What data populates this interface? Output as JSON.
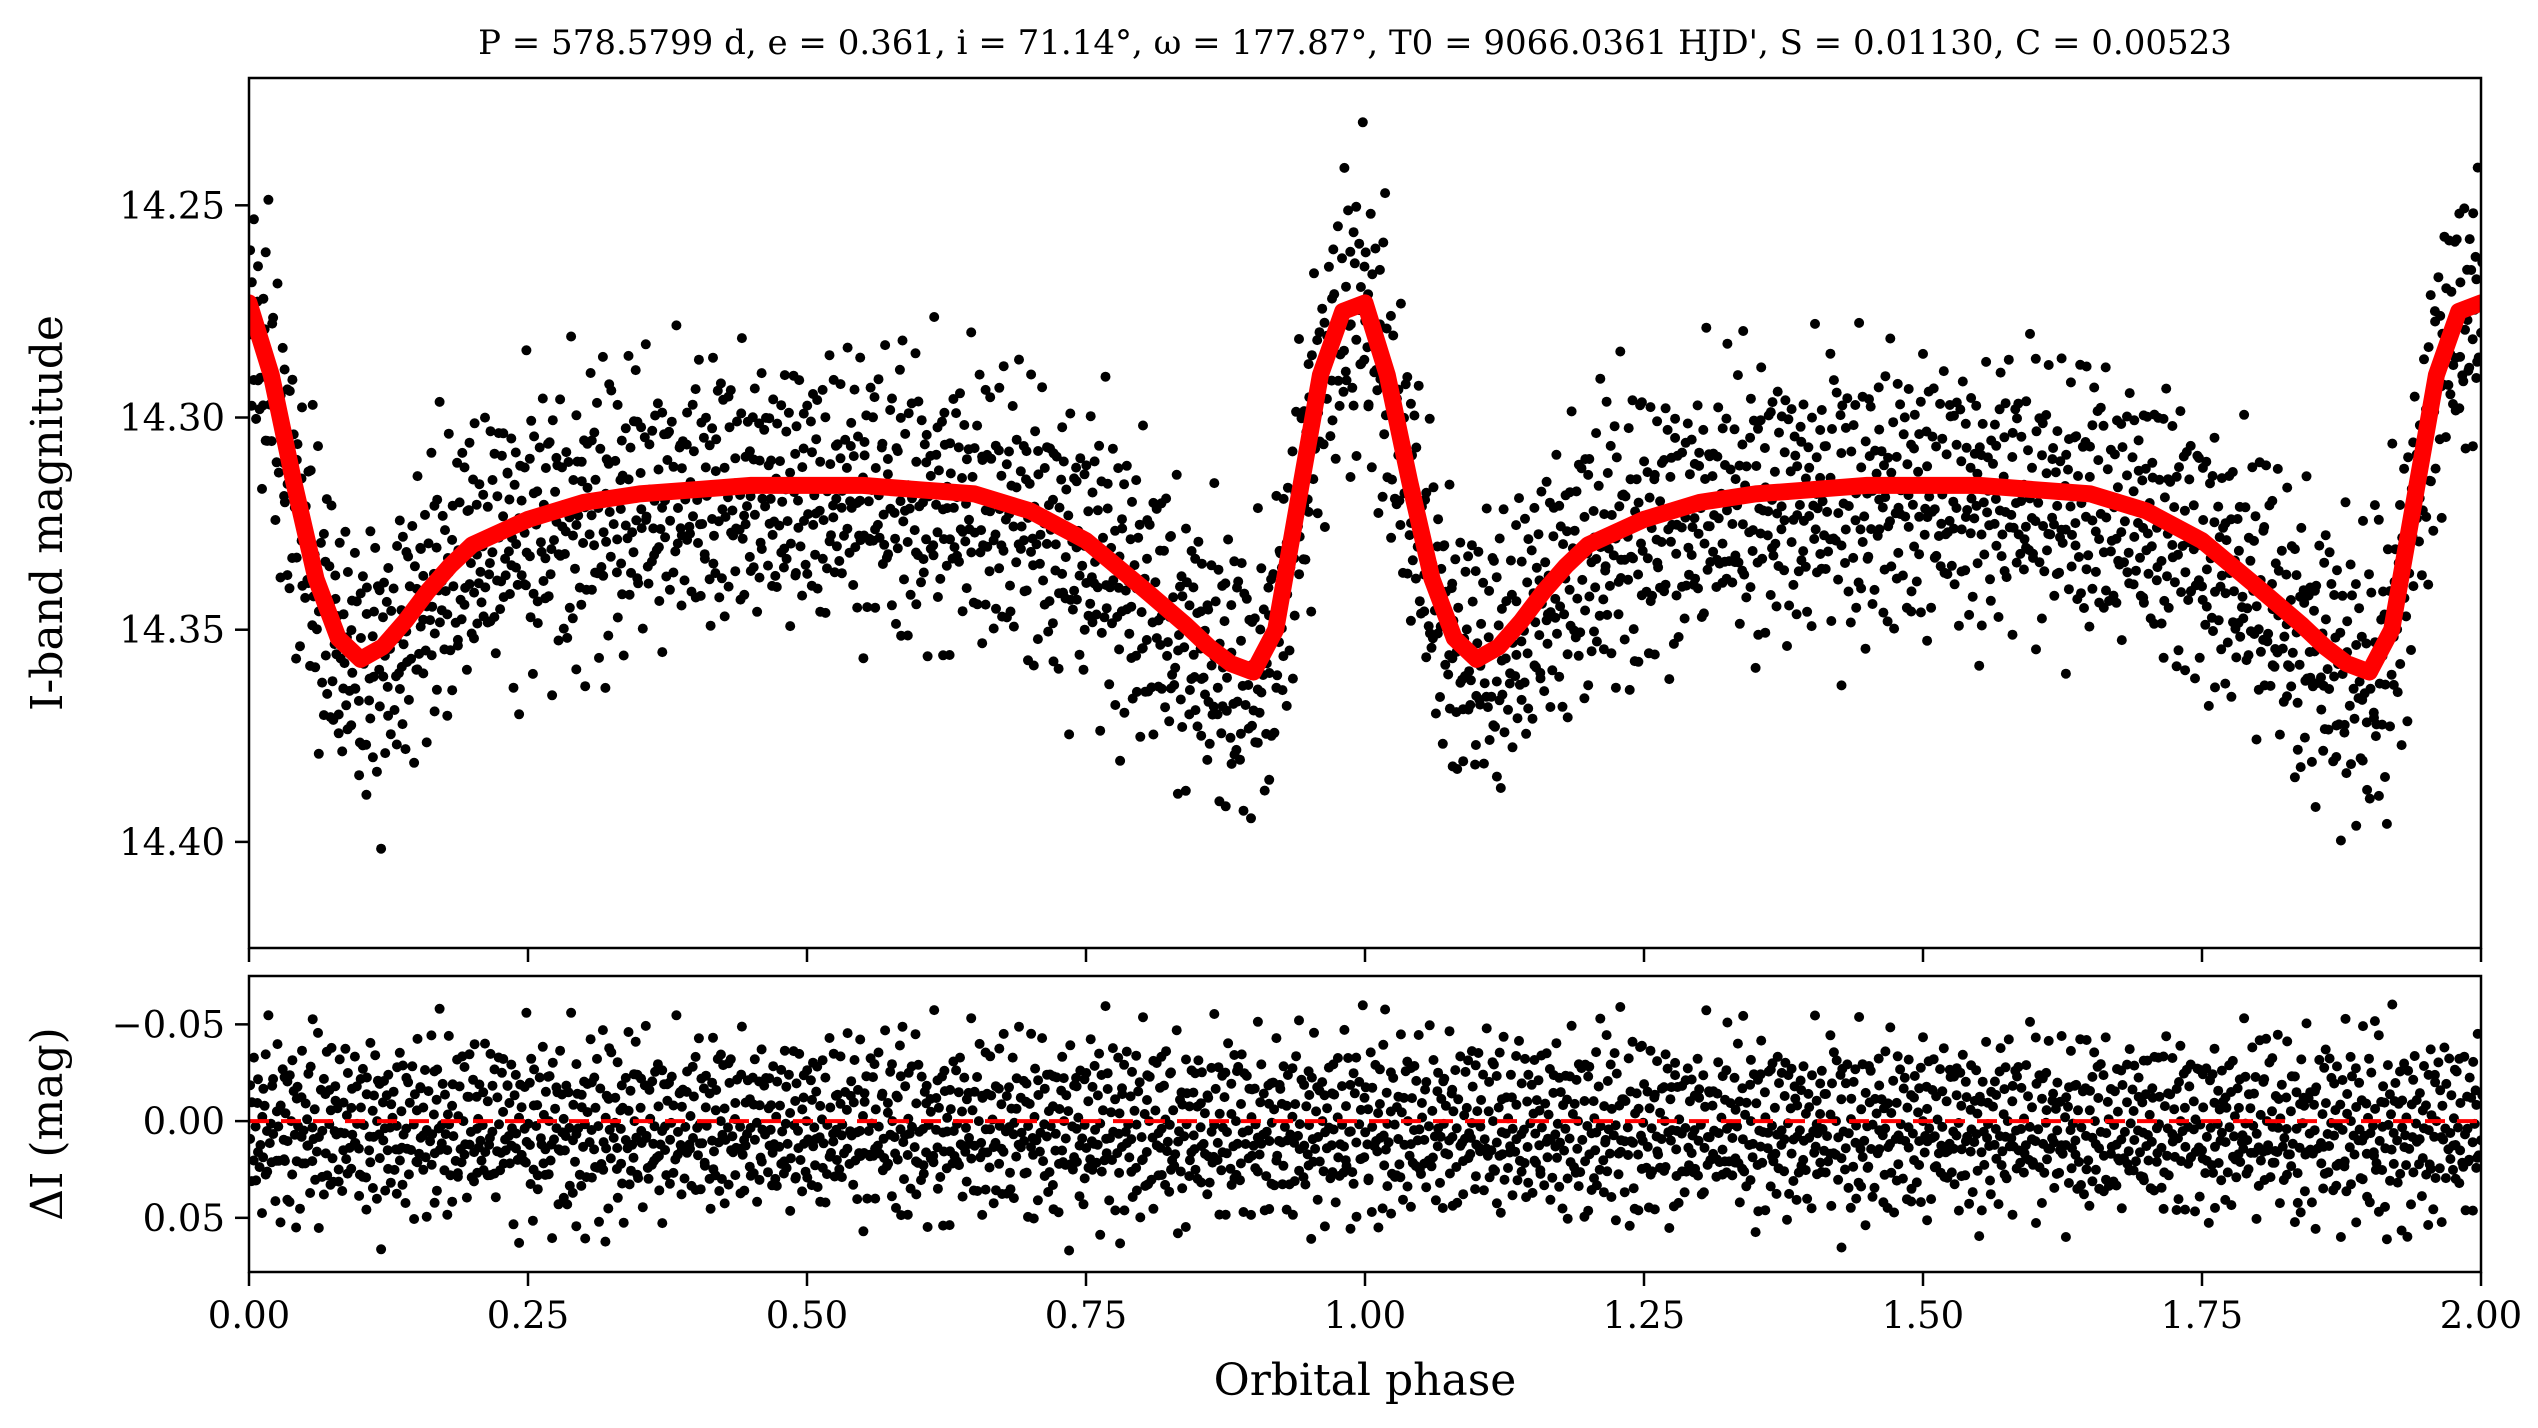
{
  "figure": {
    "title": "P = 578.5799 d, e = 0.361, i = 71.14°, ω = 177.87°, T0 = 9066.0361 HJD', S = 0.01130, C = 0.00523",
    "colors": {
      "data": "#000000",
      "model": "#ff0000",
      "zero_line": "#ff0000",
      "background": "#ffffff"
    }
  },
  "chart_data": [
    {
      "type": "scatter",
      "panel": "light-curve",
      "ylabel": "I-band magnitude",
      "xlim": [
        0,
        2
      ],
      "ylim": [
        14.425,
        14.22
      ],
      "y_inverted": true,
      "yticks": [
        14.25,
        14.3,
        14.35,
        14.4
      ],
      "ytick_labels": [
        "14.25",
        "14.30",
        "14.35",
        "14.40"
      ],
      "xticks": [
        0,
        0.25,
        0.5,
        0.75,
        1.0,
        1.25,
        1.5,
        1.75,
        2.0
      ],
      "series": [
        {
          "kind": "model-line",
          "x": [
            0.0,
            0.02,
            0.04,
            0.06,
            0.08,
            0.1,
            0.12,
            0.14,
            0.16,
            0.18,
            0.2,
            0.25,
            0.3,
            0.35,
            0.4,
            0.45,
            0.5,
            0.55,
            0.6,
            0.65,
            0.7,
            0.75,
            0.8,
            0.84,
            0.86,
            0.88,
            0.9,
            0.92,
            0.94,
            0.96,
            0.98,
            1.0,
            1.02,
            1.04,
            1.06,
            1.08,
            1.1,
            1.12,
            1.14,
            1.16,
            1.18,
            1.2,
            1.25,
            1.3,
            1.35,
            1.4,
            1.45,
            1.5,
            1.55,
            1.6,
            1.65,
            1.7,
            1.75,
            1.8,
            1.84,
            1.86,
            1.88,
            1.9,
            1.92,
            1.94,
            1.96,
            1.98,
            2.0
          ],
          "y": [
            14.273,
            14.29,
            14.315,
            14.338,
            14.352,
            14.357,
            14.354,
            14.348,
            14.341,
            14.335,
            14.33,
            14.324,
            14.32,
            14.318,
            14.317,
            14.316,
            14.316,
            14.316,
            14.317,
            14.318,
            14.322,
            14.329,
            14.34,
            14.349,
            14.354,
            14.358,
            14.36,
            14.35,
            14.32,
            14.29,
            14.275,
            14.273,
            14.29,
            14.315,
            14.338,
            14.352,
            14.357,
            14.354,
            14.348,
            14.341,
            14.335,
            14.33,
            14.324,
            14.32,
            14.318,
            14.317,
            14.316,
            14.316,
            14.316,
            14.317,
            14.318,
            14.322,
            14.329,
            14.34,
            14.349,
            14.354,
            14.358,
            14.36,
            14.35,
            14.32,
            14.29,
            14.275,
            14.273
          ]
        },
        {
          "kind": "observations",
          "model_offset": [
            -0.012,
            0.008,
            0.021,
            -0.005,
            0.015,
            -0.018,
            0.003,
            0.027,
            -0.009,
            0.011,
            -0.024,
            0.006,
            0.017,
            -0.002,
            0.031,
            -0.014,
            0.009,
            -0.007,
            0.022,
            -0.019,
            0.004,
            0.013,
            -0.028,
            0.01,
            0.001,
            -0.011,
            0.019,
            0.007,
            -0.016,
            0.025,
            -0.004,
            0.014,
            -0.021,
            0.002,
            0.018,
            -0.008,
            0.029,
            -0.013,
            0.005,
            0.012,
            -0.026,
            0.016,
            -0.003,
            0.023,
            -0.01,
            0.008,
            -0.017,
            0.02,
            0.0,
            -0.022,
            0.015,
            0.006,
            -0.015,
            0.032,
            -0.006,
            0.011,
            -0.02,
            0.003,
            0.024,
            -0.012,
            0.009,
            -0.025,
            0.017,
            0.004,
            -0.009,
            0.026,
            -0.001,
            0.013,
            -0.018,
            0.007,
            0.021,
            -0.014,
            0.002,
            0.016,
            -0.027,
            0.01,
            -0.005,
            0.019,
            0.012,
            -0.023,
            0.006,
            0.028,
            -0.011,
            0.003,
            0.014,
            -0.016,
            0.022,
            -0.007,
            0.008,
            -0.019,
            0.03,
            0.001,
            -0.012,
            0.018,
            -0.004,
            0.011,
            -0.029,
            0.015,
            0.005,
            -0.01
          ]
        }
      ]
    },
    {
      "type": "scatter",
      "panel": "residuals",
      "xlabel": "Orbital phase",
      "ylabel": "ΔI (mag)",
      "xlim": [
        0,
        2
      ],
      "ylim": [
        0.078,
        -0.075
      ],
      "y_inverted": true,
      "yticks": [
        -0.05,
        0.0,
        0.05
      ],
      "ytick_labels": [
        "−0.05",
        "0.00",
        "0.05"
      ],
      "xticks": [
        0,
        0.25,
        0.5,
        0.75,
        1.0,
        1.25,
        1.5,
        1.75,
        2.0
      ],
      "xtick_labels": [
        "0.00",
        "0.25",
        "0.50",
        "0.75",
        "1.00",
        "1.25",
        "1.50",
        "1.75",
        "2.00"
      ],
      "zero_line": {
        "y": 0.0,
        "style": "dashed"
      },
      "residual_range": [
        -0.07,
        0.07
      ]
    }
  ]
}
